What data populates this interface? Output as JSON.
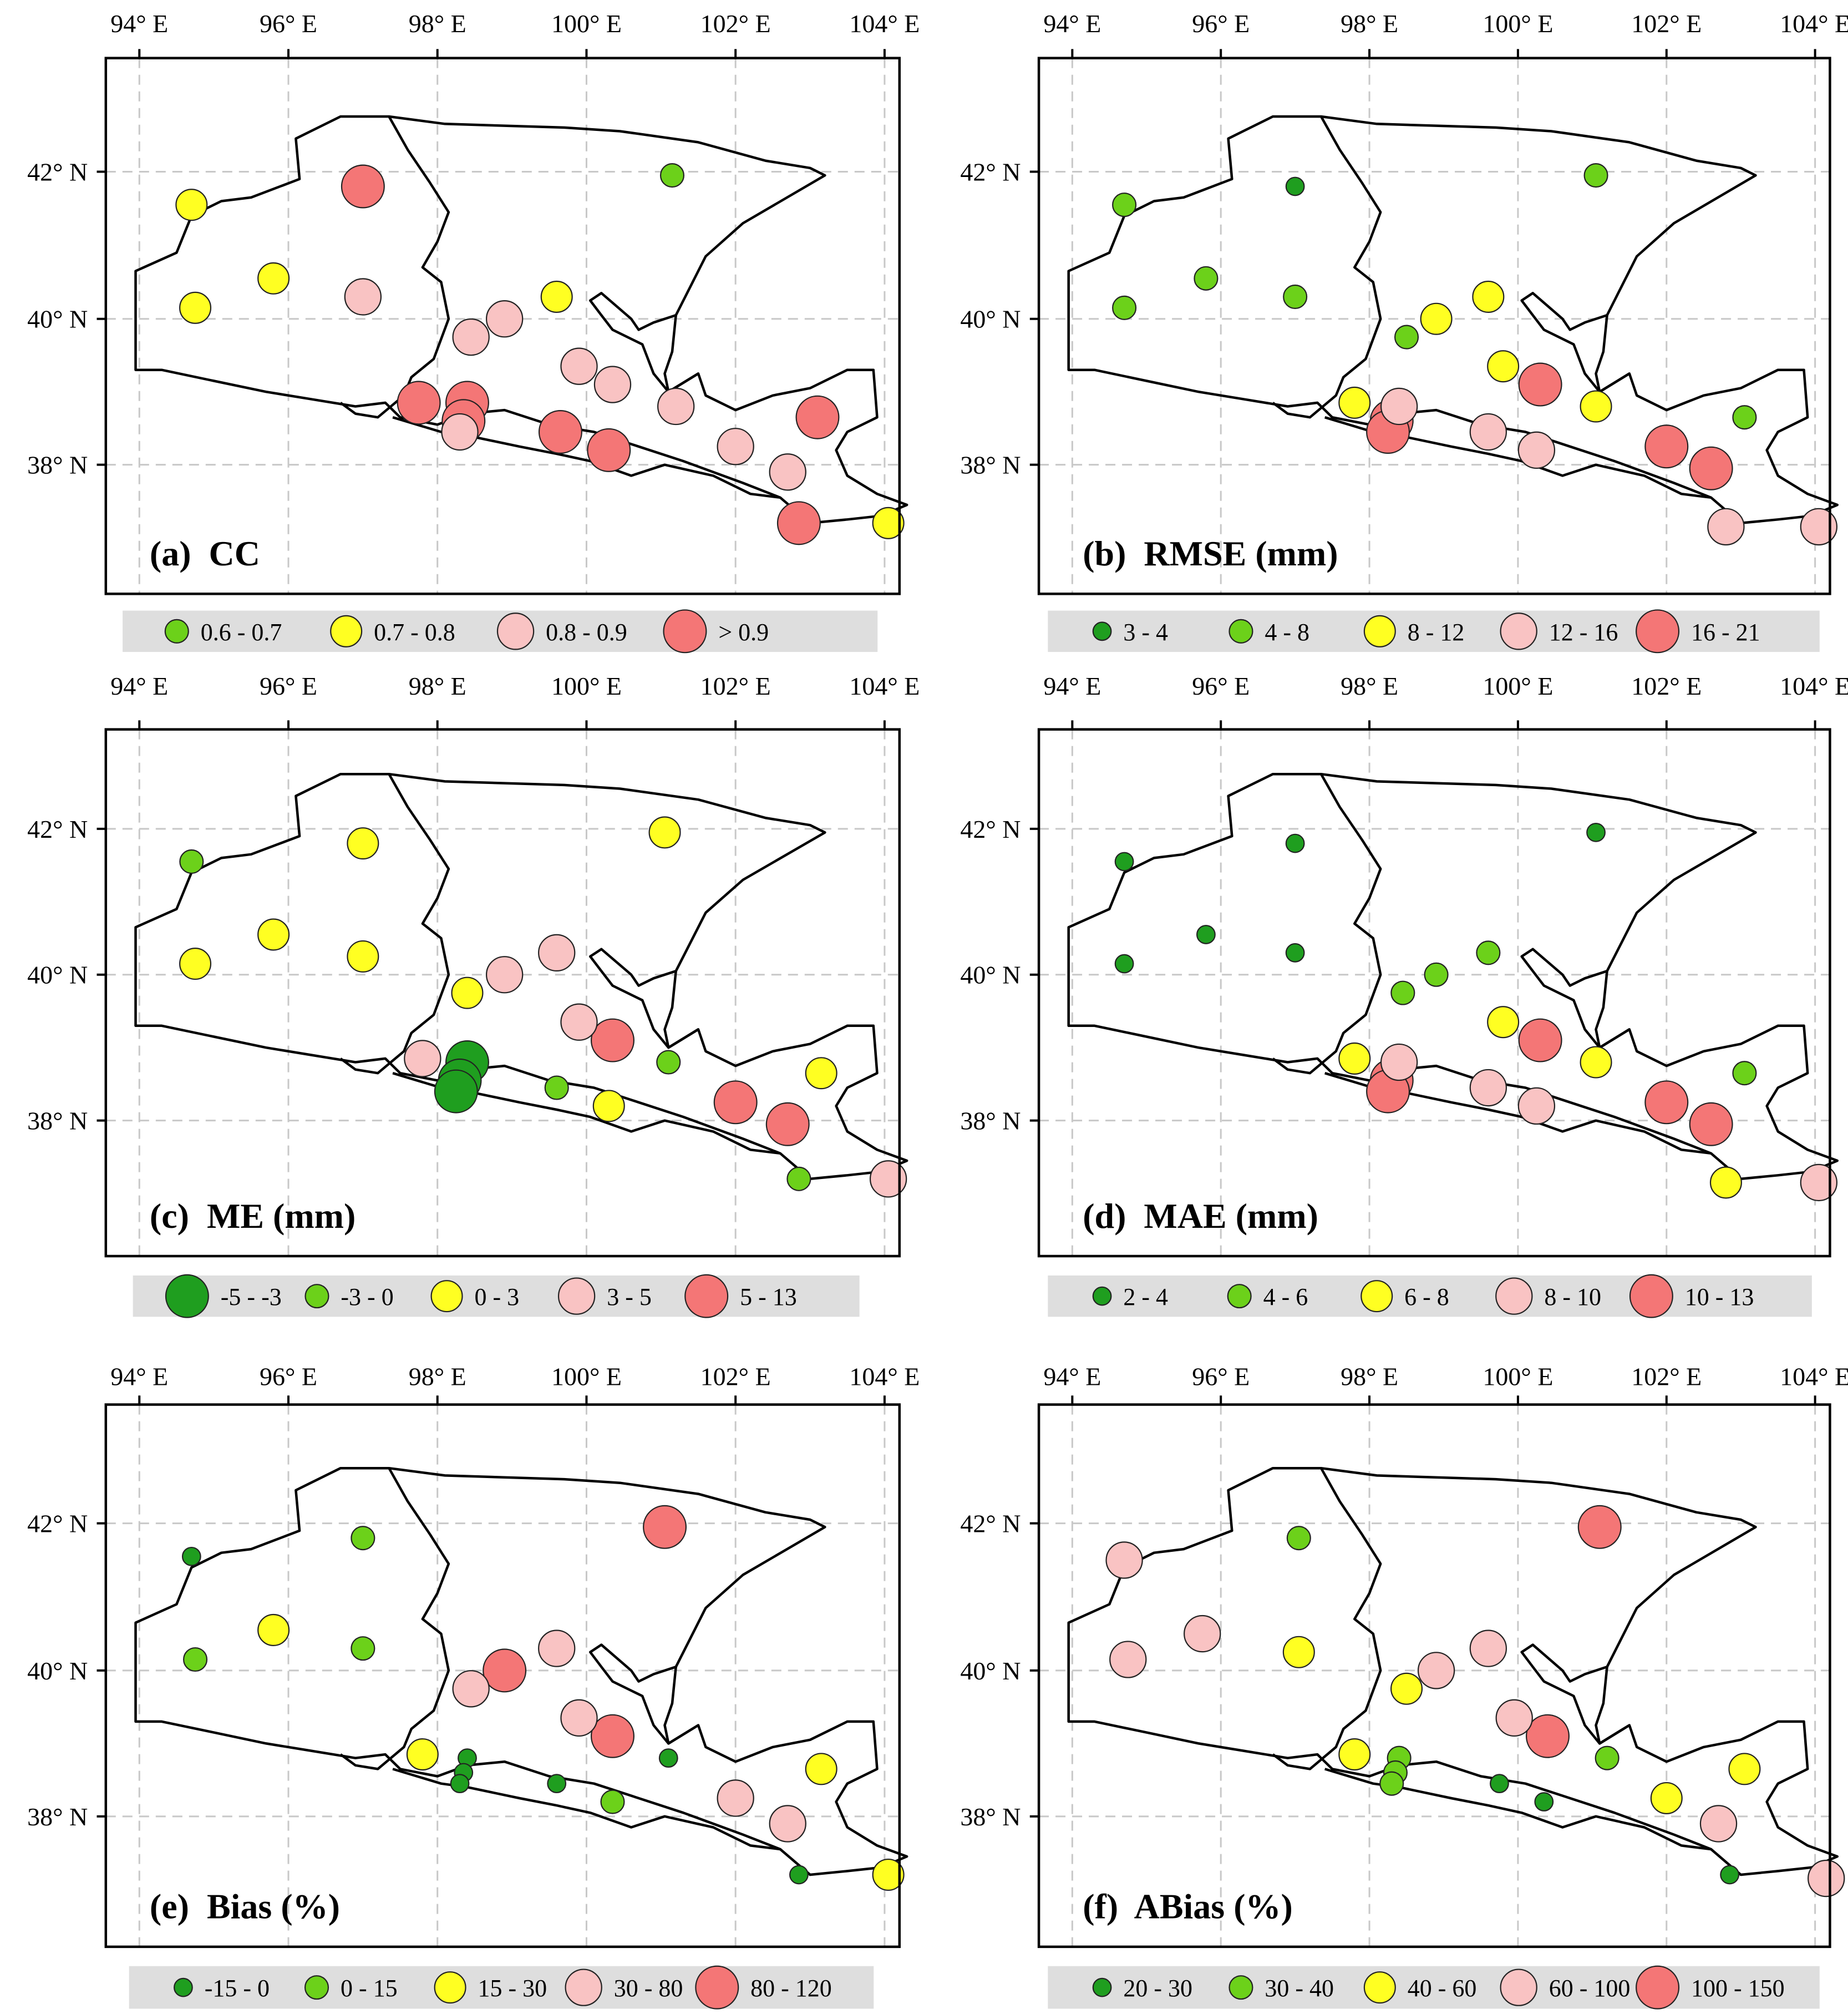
{
  "lon_labels": [
    "94° E",
    "96° E",
    "98° E",
    "100° E",
    "102° E",
    "104° E"
  ],
  "lat_labels": [
    "42° N",
    "40° N",
    "38° N"
  ],
  "colors": {
    "dark_green": "#1f9e1f",
    "light_green": "#6cd11a",
    "yellow": "#ffff22",
    "pink": "#f9c3c3",
    "red": "#f47676",
    "legend_bg": "#dedede",
    "grid": "#c8c8c8"
  },
  "panels": [
    {
      "title": "(a)  CC",
      "legend": [
        {
          "label": "0.6 - 0.7",
          "color": "light_green",
          "size": 1
        },
        {
          "label": "0.7 - 0.8",
          "color": "yellow",
          "size": 2
        },
        {
          "label": "0.8 - 0.9",
          "color": "pink",
          "size": 3
        },
        {
          "label": "> 0.9",
          "color": "red",
          "size": 4
        }
      ],
      "stations": [
        {
          "lon": 101.15,
          "lat": 41.95,
          "cls": 0
        },
        {
          "lon": 94.7,
          "lat": 41.55,
          "cls": 1
        },
        {
          "lon": 94.75,
          "lat": 40.15,
          "cls": 1
        },
        {
          "lon": 95.8,
          "lat": 40.55,
          "cls": 1
        },
        {
          "lon": 99.6,
          "lat": 40.3,
          "cls": 1
        },
        {
          "lon": 104.05,
          "lat": 37.2,
          "cls": 1
        },
        {
          "lon": 97.0,
          "lat": 40.3,
          "cls": 2
        },
        {
          "lon": 98.45,
          "lat": 39.75,
          "cls": 2
        },
        {
          "lon": 98.9,
          "lat": 40.0,
          "cls": 2
        },
        {
          "lon": 99.9,
          "lat": 39.35,
          "cls": 2
        },
        {
          "lon": 100.35,
          "lat": 39.1,
          "cls": 2
        },
        {
          "lon": 101.2,
          "lat": 38.8,
          "cls": 2
        },
        {
          "lon": 98.3,
          "lat": 38.45,
          "cls": 2
        },
        {
          "lon": 102.0,
          "lat": 38.25,
          "cls": 2
        },
        {
          "lon": 102.7,
          "lat": 37.9,
          "cls": 2
        },
        {
          "lon": 97.0,
          "lat": 41.8,
          "cls": 3
        },
        {
          "lon": 97.75,
          "lat": 38.85,
          "cls": 3
        },
        {
          "lon": 98.4,
          "lat": 38.85,
          "cls": 3
        },
        {
          "lon": 98.35,
          "lat": 38.6,
          "cls": 3
        },
        {
          "lon": 99.65,
          "lat": 38.45,
          "cls": 3
        },
        {
          "lon": 100.3,
          "lat": 38.2,
          "cls": 3
        },
        {
          "lon": 103.1,
          "lat": 38.65,
          "cls": 3
        },
        {
          "lon": 102.85,
          "lat": 37.2,
          "cls": 3
        }
      ]
    },
    {
      "title": "(b)  RMSE (mm)",
      "legend": [
        {
          "label": "3 - 4",
          "color": "dark_green",
          "size": 0
        },
        {
          "label": "4 - 8",
          "color": "light_green",
          "size": 1
        },
        {
          "label": "8 - 12",
          "color": "yellow",
          "size": 2
        },
        {
          "label": "12 - 16",
          "color": "pink",
          "size": 3
        },
        {
          "label": "16 - 21",
          "color": "red",
          "size": 4
        }
      ],
      "stations": [
        {
          "lon": 97.0,
          "lat": 41.8,
          "cls": 0
        },
        {
          "lon": 94.7,
          "lat": 41.55,
          "cls": 1
        },
        {
          "lon": 94.7,
          "lat": 40.15,
          "cls": 1
        },
        {
          "lon": 95.8,
          "lat": 40.55,
          "cls": 1
        },
        {
          "lon": 97.0,
          "lat": 40.3,
          "cls": 1
        },
        {
          "lon": 98.5,
          "lat": 39.75,
          "cls": 1
        },
        {
          "lon": 101.05,
          "lat": 41.95,
          "cls": 1
        },
        {
          "lon": 103.05,
          "lat": 38.65,
          "cls": 1
        },
        {
          "lon": 98.9,
          "lat": 40.0,
          "cls": 2
        },
        {
          "lon": 99.6,
          "lat": 40.3,
          "cls": 2
        },
        {
          "lon": 99.8,
          "lat": 39.35,
          "cls": 2
        },
        {
          "lon": 97.8,
          "lat": 38.85,
          "cls": 2
        },
        {
          "lon": 101.05,
          "lat": 38.8,
          "cls": 2
        },
        {
          "lon": 98.4,
          "lat": 38.8,
          "cls": 3
        },
        {
          "lon": 99.6,
          "lat": 38.45,
          "cls": 3
        },
        {
          "lon": 100.25,
          "lat": 38.2,
          "cls": 3
        },
        {
          "lon": 102.8,
          "lat": 37.15,
          "cls": 3
        },
        {
          "lon": 104.05,
          "lat": 37.15,
          "cls": 3
        },
        {
          "lon": 98.3,
          "lat": 38.6,
          "cls": 4
        },
        {
          "lon": 98.25,
          "lat": 38.45,
          "cls": 4
        },
        {
          "lon": 100.3,
          "lat": 39.1,
          "cls": 4
        },
        {
          "lon": 102.0,
          "lat": 38.25,
          "cls": 4
        },
        {
          "lon": 102.6,
          "lat": 37.95,
          "cls": 4
        }
      ]
    },
    {
      "title": "(c)  ME (mm)",
      "legend": [
        {
          "label": "-5 - -3",
          "color": "dark_green",
          "size": 4
        },
        {
          "label": "-3 - 0",
          "color": "light_green",
          "size": 1
        },
        {
          "label": "0 - 3",
          "color": "yellow",
          "size": 2
        },
        {
          "label": "3 - 5",
          "color": "pink",
          "size": 3
        },
        {
          "label": "5 - 13",
          "color": "red",
          "size": 4
        }
      ],
      "stations": [
        {
          "lon": 98.4,
          "lat": 38.8,
          "cls": 0
        },
        {
          "lon": 98.3,
          "lat": 38.55,
          "cls": 0
        },
        {
          "lon": 98.25,
          "lat": 38.4,
          "cls": 0
        },
        {
          "lon": 94.7,
          "lat": 41.55,
          "cls": 1
        },
        {
          "lon": 99.6,
          "lat": 38.45,
          "cls": 1
        },
        {
          "lon": 101.1,
          "lat": 38.8,
          "cls": 1
        },
        {
          "lon": 102.85,
          "lat": 37.2,
          "cls": 1
        },
        {
          "lon": 94.75,
          "lat": 40.15,
          "cls": 2
        },
        {
          "lon": 95.8,
          "lat": 40.55,
          "cls": 2
        },
        {
          "lon": 97.0,
          "lat": 41.8,
          "cls": 2
        },
        {
          "lon": 97.0,
          "lat": 40.25,
          "cls": 2
        },
        {
          "lon": 98.4,
          "lat": 39.75,
          "cls": 2
        },
        {
          "lon": 101.05,
          "lat": 41.95,
          "cls": 2
        },
        {
          "lon": 100.3,
          "lat": 38.2,
          "cls": 2
        },
        {
          "lon": 103.15,
          "lat": 38.65,
          "cls": 2
        },
        {
          "lon": 97.8,
          "lat": 38.85,
          "cls": 3
        },
        {
          "lon": 98.9,
          "lat": 40.0,
          "cls": 3
        },
        {
          "lon": 99.6,
          "lat": 40.3,
          "cls": 3
        },
        {
          "lon": 99.9,
          "lat": 39.35,
          "cls": 3
        },
        {
          "lon": 104.05,
          "lat": 37.2,
          "cls": 3
        },
        {
          "lon": 100.35,
          "lat": 39.1,
          "cls": 4
        },
        {
          "lon": 102.0,
          "lat": 38.25,
          "cls": 4
        },
        {
          "lon": 102.7,
          "lat": 37.95,
          "cls": 4
        }
      ]
    },
    {
      "title": "(d)  MAE (mm)",
      "legend": [
        {
          "label": "2 - 4",
          "color": "dark_green",
          "size": 0
        },
        {
          "label": "4 - 6",
          "color": "light_green",
          "size": 1
        },
        {
          "label": "6 - 8",
          "color": "yellow",
          "size": 2
        },
        {
          "label": "8 - 10",
          "color": "pink",
          "size": 3
        },
        {
          "label": "10 - 13",
          "color": "red",
          "size": 4
        }
      ],
      "stations": [
        {
          "lon": 94.7,
          "lat": 41.55,
          "cls": 0
        },
        {
          "lon": 94.7,
          "lat": 40.15,
          "cls": 0
        },
        {
          "lon": 95.8,
          "lat": 40.55,
          "cls": 0
        },
        {
          "lon": 97.0,
          "lat": 41.8,
          "cls": 0
        },
        {
          "lon": 97.0,
          "lat": 40.3,
          "cls": 0
        },
        {
          "lon": 101.05,
          "lat": 41.95,
          "cls": 0
        },
        {
          "lon": 98.45,
          "lat": 39.75,
          "cls": 1
        },
        {
          "lon": 98.9,
          "lat": 40.0,
          "cls": 1
        },
        {
          "lon": 99.6,
          "lat": 40.3,
          "cls": 1
        },
        {
          "lon": 103.05,
          "lat": 38.65,
          "cls": 1
        },
        {
          "lon": 97.8,
          "lat": 38.85,
          "cls": 2
        },
        {
          "lon": 99.8,
          "lat": 39.35,
          "cls": 2
        },
        {
          "lon": 101.05,
          "lat": 38.8,
          "cls": 2
        },
        {
          "lon": 102.8,
          "lat": 37.15,
          "cls": 2
        },
        {
          "lon": 98.4,
          "lat": 38.8,
          "cls": 3
        },
        {
          "lon": 99.6,
          "lat": 38.45,
          "cls": 3
        },
        {
          "lon": 100.25,
          "lat": 38.2,
          "cls": 3
        },
        {
          "lon": 104.05,
          "lat": 37.15,
          "cls": 3
        },
        {
          "lon": 98.3,
          "lat": 38.55,
          "cls": 4
        },
        {
          "lon": 98.25,
          "lat": 38.4,
          "cls": 4
        },
        {
          "lon": 100.3,
          "lat": 39.1,
          "cls": 4
        },
        {
          "lon": 102.0,
          "lat": 38.25,
          "cls": 4
        },
        {
          "lon": 102.6,
          "lat": 37.95,
          "cls": 4
        }
      ]
    },
    {
      "title": "(e)  Bias (%)",
      "legend": [
        {
          "label": "-15 - 0",
          "color": "dark_green",
          "size": 0
        },
        {
          "label": "0 - 15",
          "color": "light_green",
          "size": 1
        },
        {
          "label": "15 - 30",
          "color": "yellow",
          "size": 2
        },
        {
          "label": "30 - 80",
          "color": "pink",
          "size": 3
        },
        {
          "label": "80 - 120",
          "color": "red",
          "size": 4
        }
      ],
      "stations": [
        {
          "lon": 94.7,
          "lat": 41.55,
          "cls": 0
        },
        {
          "lon": 98.4,
          "lat": 38.8,
          "cls": 0
        },
        {
          "lon": 98.35,
          "lat": 38.6,
          "cls": 0
        },
        {
          "lon": 98.3,
          "lat": 38.45,
          "cls": 0
        },
        {
          "lon": 99.6,
          "lat": 38.45,
          "cls": 0
        },
        {
          "lon": 101.1,
          "lat": 38.8,
          "cls": 0
        },
        {
          "lon": 102.85,
          "lat": 37.2,
          "cls": 0
        },
        {
          "lon": 94.75,
          "lat": 40.15,
          "cls": 1
        },
        {
          "lon": 97.0,
          "lat": 41.8,
          "cls": 1
        },
        {
          "lon": 97.0,
          "lat": 40.3,
          "cls": 1
        },
        {
          "lon": 100.35,
          "lat": 38.2,
          "cls": 1
        },
        {
          "lon": 95.8,
          "lat": 40.55,
          "cls": 2
        },
        {
          "lon": 97.8,
          "lat": 38.85,
          "cls": 2
        },
        {
          "lon": 103.15,
          "lat": 38.65,
          "cls": 2
        },
        {
          "lon": 104.05,
          "lat": 37.2,
          "cls": 2
        },
        {
          "lon": 98.45,
          "lat": 39.75,
          "cls": 3
        },
        {
          "lon": 99.6,
          "lat": 40.3,
          "cls": 3
        },
        {
          "lon": 99.9,
          "lat": 39.35,
          "cls": 3
        },
        {
          "lon": 102.0,
          "lat": 38.25,
          "cls": 3
        },
        {
          "lon": 102.7,
          "lat": 37.9,
          "cls": 3
        },
        {
          "lon": 98.9,
          "lat": 40.0,
          "cls": 4
        },
        {
          "lon": 100.35,
          "lat": 39.1,
          "cls": 4
        },
        {
          "lon": 101.05,
          "lat": 41.95,
          "cls": 4
        }
      ]
    },
    {
      "title": "(f)  ABias (%)",
      "legend": [
        {
          "label": "20 - 30",
          "color": "dark_green",
          "size": 0
        },
        {
          "label": "30 - 40",
          "color": "light_green",
          "size": 1
        },
        {
          "label": "40 - 60",
          "color": "yellow",
          "size": 2
        },
        {
          "label": "60 - 100",
          "color": "pink",
          "size": 3
        },
        {
          "label": "100 - 150",
          "color": "red",
          "size": 4
        }
      ],
      "stations": [
        {
          "lon": 99.75,
          "lat": 38.45,
          "cls": 0
        },
        {
          "lon": 100.35,
          "lat": 38.2,
          "cls": 0
        },
        {
          "lon": 102.85,
          "lat": 37.2,
          "cls": 0
        },
        {
          "lon": 97.05,
          "lat": 41.8,
          "cls": 1
        },
        {
          "lon": 98.4,
          "lat": 38.8,
          "cls": 1
        },
        {
          "lon": 98.35,
          "lat": 38.6,
          "cls": 1
        },
        {
          "lon": 98.3,
          "lat": 38.45,
          "cls": 1
        },
        {
          "lon": 101.2,
          "lat": 38.8,
          "cls": 1
        },
        {
          "lon": 97.05,
          "lat": 40.25,
          "cls": 2
        },
        {
          "lon": 98.5,
          "lat": 39.75,
          "cls": 2
        },
        {
          "lon": 97.8,
          "lat": 38.85,
          "cls": 2
        },
        {
          "lon": 102.0,
          "lat": 38.25,
          "cls": 2
        },
        {
          "lon": 103.05,
          "lat": 38.65,
          "cls": 2
        },
        {
          "lon": 94.7,
          "lat": 41.5,
          "cls": 3
        },
        {
          "lon": 94.75,
          "lat": 40.15,
          "cls": 3
        },
        {
          "lon": 95.75,
          "lat": 40.5,
          "cls": 3
        },
        {
          "lon": 98.9,
          "lat": 40.0,
          "cls": 3
        },
        {
          "lon": 99.6,
          "lat": 40.3,
          "cls": 3
        },
        {
          "lon": 99.95,
          "lat": 39.35,
          "cls": 3
        },
        {
          "lon": 102.7,
          "lat": 37.9,
          "cls": 3
        },
        {
          "lon": 104.15,
          "lat": 37.15,
          "cls": 3
        },
        {
          "lon": 100.4,
          "lat": 39.1,
          "cls": 4
        },
        {
          "lon": 101.1,
          "lat": 41.95,
          "cls": 4
        }
      ]
    }
  ]
}
